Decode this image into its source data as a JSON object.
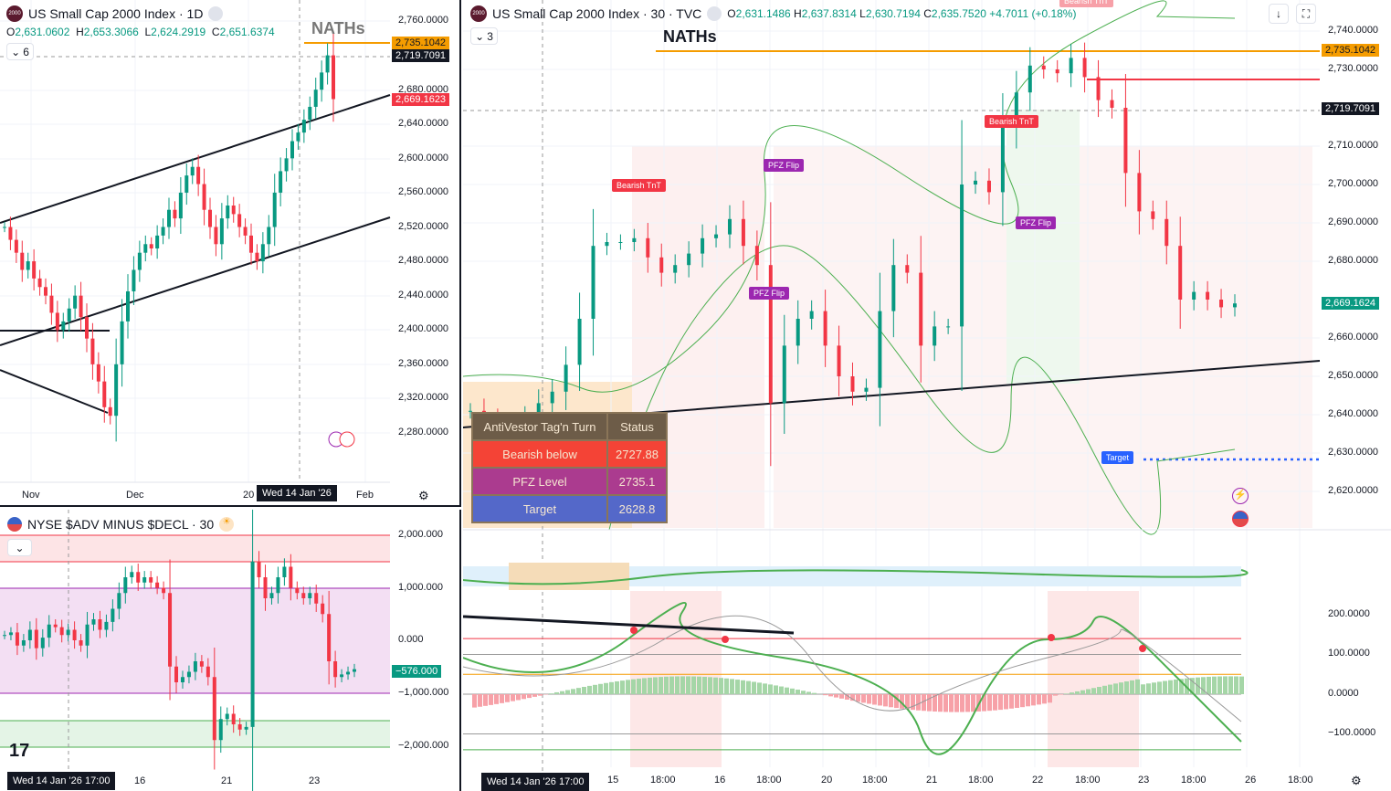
{
  "colors": {
    "up": "#089981",
    "down": "#f23645",
    "orange": "#f59c00",
    "dark": "#131722"
  },
  "left_chart": {
    "title": "US Small Cap 2000 Index · 1D",
    "ohlc": {
      "o_label": "O",
      "o": "2,631.0602",
      "h_label": "H",
      "h": "2,653.3066",
      "l_label": "L",
      "l": "2,624.2919",
      "c_label": "C",
      "c": "2,651.6374"
    },
    "indicators_count": "6",
    "annotation": "NATHs",
    "price_axis": [
      "2,760.0000",
      "2,680.0000",
      "2,640.0000",
      "2,600.0000",
      "2,560.0000",
      "2,520.0000",
      "2,480.0000",
      "2,440.0000",
      "2,400.0000",
      "2,360.0000",
      "2,320.0000",
      "2,280.0000"
    ],
    "price_tags": {
      "naths": "2,735.1042",
      "crosshair": "2,719.7091",
      "last": "2,669.1623"
    },
    "time_axis": [
      "Nov",
      "Dec",
      "20",
      "Feb"
    ],
    "crosshair_time": "Wed 14 Jan '26",
    "closes": [
      2520,
      2505,
      2490,
      2470,
      2480,
      2460,
      2450,
      2440,
      2420,
      2400,
      2410,
      2425,
      2440,
      2415,
      2390,
      2360,
      2340,
      2310,
      2300,
      2360,
      2410,
      2445,
      2470,
      2490,
      2500,
      2495,
      2510,
      2520,
      2540,
      2530,
      2560,
      2580,
      2590,
      2570,
      2540,
      2520,
      2500,
      2530,
      2545,
      2535,
      2520,
      2510,
      2490,
      2480,
      2500,
      2520,
      2560,
      2585,
      2600,
      2620,
      2630,
      2645,
      2660,
      2680,
      2700,
      2720,
      2669
    ]
  },
  "breadth_chart": {
    "title": "NYSE $ADV MINUS $DECL · 30",
    "price_axis": [
      "2,000.000",
      "1,000.000",
      "0.000",
      "−1,000.000",
      "−2,000.000"
    ],
    "last": "−576.000",
    "time_axis": [
      "16",
      "21",
      "23"
    ],
    "crosshair_time": "Wed 14 Jan '26   17:00",
    "values": [
      100,
      150,
      -100,
      0,
      200,
      -150,
      50,
      300,
      250,
      100,
      200,
      0,
      -100,
      300,
      400,
      200,
      350,
      600,
      900,
      1200,
      1300,
      1100,
      1200,
      1100,
      1000,
      900,
      -500,
      -800,
      -700,
      -600,
      -400,
      -500,
      -700,
      -1900,
      -1500,
      -1400,
      -1600,
      -1700,
      -1650,
      1500,
      1200,
      800,
      900,
      1200,
      1400,
      1000,
      900,
      800,
      900,
      700,
      500,
      -400,
      -700,
      -650,
      -600,
      -550
    ]
  },
  "main_chart": {
    "title": "US Small Cap 2000 Index · 30 · TVC",
    "ohlc": {
      "o_label": "O",
      "o": "2,631.1486",
      "h_label": "H",
      "h": "2,637.8314",
      "l_label": "L",
      "l": "2,630.7194",
      "c_label": "C",
      "c": "2,635.7520",
      "change": "+4.7011 (+0.18%)"
    },
    "indicators_count": "3",
    "annotation": "NATHs",
    "price_axis": [
      "2,740.0000",
      "2,730.0000",
      "2,710.0000",
      "2,700.0000",
      "2,690.0000",
      "2,680.0000",
      "2,660.0000",
      "2,650.0000",
      "2,640.0000",
      "2,630.0000",
      "2,620.0000"
    ],
    "price_tags": {
      "naths": "2,735.1042",
      "crosshair": "2,719.7091",
      "last": "2,669.1624"
    },
    "labels": {
      "bearish1": "Bearish TnT",
      "bearish2": "Bearish TnT",
      "bearish_top": "Bearish TnT",
      "pfz1": "PFZ Flip",
      "pfz2": "PFZ Flip",
      "pfz3": "PFZ Flip",
      "target": "Target"
    },
    "table": {
      "headers": [
        "AntiVestor Tag'n Turn",
        "Status"
      ],
      "rows": [
        {
          "label": "Bearish below",
          "value": "2727.88",
          "color": "#f44336"
        },
        {
          "label": "PFZ Level",
          "value": "2735.1",
          "color": "#ab3b8f"
        },
        {
          "label": "Target",
          "value": "2628.8",
          "color": "#5468c9"
        }
      ]
    },
    "closes": [
      2641,
      2638,
      2634,
      2636,
      2639,
      2643,
      2646,
      2653,
      2665,
      2684,
      2685,
      2685,
      2686,
      2681,
      2677,
      2679,
      2682,
      2686,
      2687,
      2691,
      2684,
      2679,
      2643,
      2658,
      2665,
      2667,
      2658,
      2650,
      2646,
      2647,
      2667,
      2679,
      2677,
      2658,
      2663,
      2663,
      2700,
      2701,
      2698,
      2715,
      2724,
      2731,
      2730,
      2729,
      2733,
      2728,
      2722,
      2720,
      2703,
      2693,
      2691,
      2684,
      2670,
      2672,
      2670,
      2668,
      2669
    ],
    "oscillator_axis": [
      "200.0000",
      "100.0000",
      "0.0000",
      "−100.0000"
    ],
    "time_axis": [
      "15",
      "18:00",
      "16",
      "18:00",
      "20",
      "18:00",
      "21",
      "18:00",
      "22",
      "18:00",
      "23",
      "18:00",
      "26",
      "18:00"
    ],
    "crosshair_time": "Wed 14 Jan '26   17:00"
  }
}
